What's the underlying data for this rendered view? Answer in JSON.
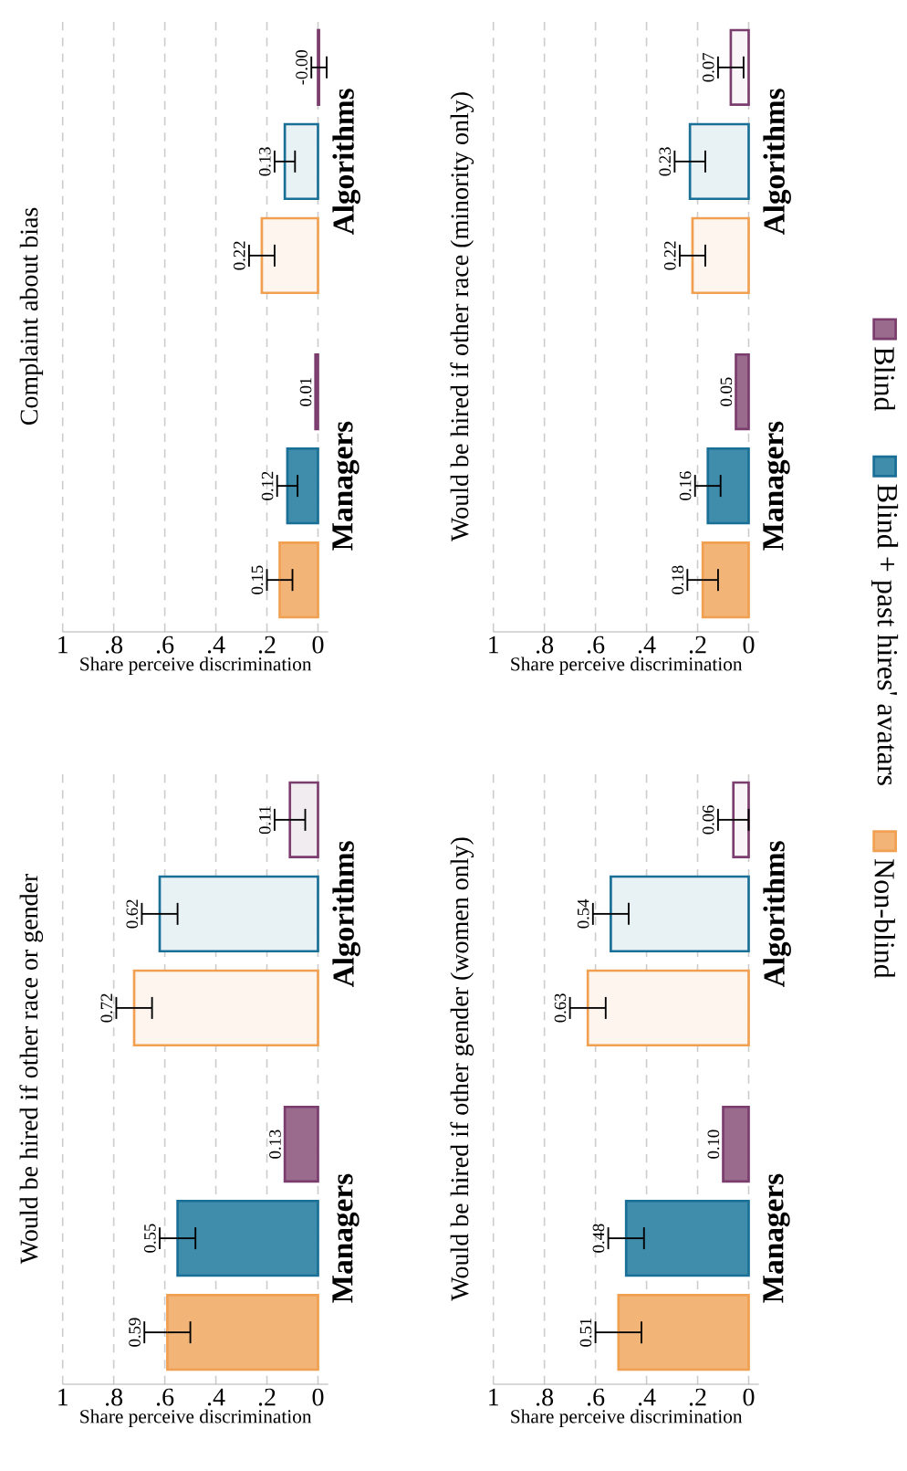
{
  "chart_data": [
    {
      "type": "bar",
      "orientation": "horizontal",
      "title": "Would be hired if other race or gender",
      "xlabel": "Share perceive discrimination",
      "categories": [
        "Algorithms",
        "Managers"
      ],
      "xlim": [
        1,
        -0.04
      ],
      "xticks": [
        {
          "value": 0,
          "label": "0"
        },
        {
          "value": 0.2,
          "label": ".2"
        },
        {
          "value": 0.4,
          "label": ".4"
        },
        {
          "value": 0.6,
          "label": ".6"
        },
        {
          "value": 0.8,
          "label": ".8"
        },
        {
          "value": 1,
          "label": "1"
        }
      ],
      "grid": "x",
      "series": [
        {
          "color": "#7a3d6e",
          "colors": [
            "#f1ecf0",
            "#9b6b8e"
          ],
          "values": [
            0.11,
            0.13
          ],
          "errors": [
            0.06,
            null
          ],
          "value_labels": [
            "0.11",
            "0.13"
          ]
        },
        {
          "color": "#1a6f96",
          "colors": [
            "#e8f1f4",
            "#3f8dab"
          ],
          "values": [
            0.62,
            0.55
          ],
          "errors": [
            0.07,
            0.07
          ],
          "value_labels": [
            "0.62",
            "0.55"
          ]
        },
        {
          "color": "#f0a050",
          "colors": [
            "#fdf5ee",
            "#f3b577"
          ],
          "values": [
            0.72,
            0.59
          ],
          "errors": [
            0.07,
            0.09
          ],
          "value_labels": [
            "0.72",
            "0.59"
          ]
        }
      ]
    },
    {
      "type": "bar",
      "orientation": "horizontal",
      "title": "Complaint about bias",
      "xlabel": "Share perceive discrimination",
      "categories": [
        "Algorithms",
        "Managers"
      ],
      "xlim": [
        1,
        -0.04
      ],
      "xticks": [
        {
          "value": 0,
          "label": "0"
        },
        {
          "value": 0.2,
          "label": ".2"
        },
        {
          "value": 0.4,
          "label": ".4"
        },
        {
          "value": 0.6,
          "label": ".6"
        },
        {
          "value": 0.8,
          "label": ".8"
        },
        {
          "value": 1,
          "label": "1"
        }
      ],
      "grid": "x",
      "series": [
        {
          "color": "#7a3d6e",
          "colors": [
            "#f1ecf0",
            "#9b6b8e"
          ],
          "values": [
            -0.004,
            0.01
          ],
          "errors": [
            0.03,
            null
          ],
          "value_labels": [
            "-0.00",
            "0.01"
          ]
        },
        {
          "color": "#1a6f96",
          "colors": [
            "#e8f1f4",
            "#3f8dab"
          ],
          "values": [
            0.13,
            0.12
          ],
          "errors": [
            0.04,
            0.04
          ],
          "value_labels": [
            "0.13",
            "0.12"
          ]
        },
        {
          "color": "#f0a050",
          "colors": [
            "#fdf5ee",
            "#f3b577"
          ],
          "values": [
            0.22,
            0.15
          ],
          "errors": [
            0.05,
            0.05
          ],
          "value_labels": [
            "0.22",
            "0.15"
          ]
        }
      ]
    },
    {
      "type": "bar",
      "orientation": "horizontal",
      "title": "Would be hired if other gender (women only)",
      "xlabel": "Share perceive discrimination",
      "categories": [
        "Algorithms",
        "Managers"
      ],
      "xlim": [
        1,
        -0.04
      ],
      "xticks": [
        {
          "value": 0,
          "label": "0"
        },
        {
          "value": 0.2,
          "label": ".2"
        },
        {
          "value": 0.4,
          "label": ".4"
        },
        {
          "value": 0.6,
          "label": ".6"
        },
        {
          "value": 0.8,
          "label": ".8"
        },
        {
          "value": 1,
          "label": "1"
        }
      ],
      "grid": "x",
      "series": [
        {
          "color": "#7a3d6e",
          "colors": [
            "#f8f4f7",
            "#9b6b8e"
          ],
          "values": [
            0.06,
            0.1
          ],
          "errors": [
            0.06,
            null
          ],
          "value_labels": [
            "0.06",
            "0.10"
          ]
        },
        {
          "color": "#1a6f96",
          "colors": [
            "#e8f1f4",
            "#3f8dab"
          ],
          "values": [
            0.54,
            0.48
          ],
          "errors": [
            0.07,
            0.07
          ],
          "value_labels": [
            "0.54",
            "0.48"
          ]
        },
        {
          "color": "#f0a050",
          "colors": [
            "#fdf5ee",
            "#f3b577"
          ],
          "values": [
            0.63,
            0.51
          ],
          "errors": [
            0.07,
            0.09
          ],
          "value_labels": [
            "0.63",
            "0.51"
          ]
        }
      ]
    },
    {
      "type": "bar",
      "orientation": "horizontal",
      "title": "Would be hired if other race (minority only)",
      "xlabel": "Share perceive discrimination",
      "categories": [
        "Algorithms",
        "Managers"
      ],
      "xlim": [
        1,
        -0.04
      ],
      "xticks": [
        {
          "value": 0,
          "label": "0"
        },
        {
          "value": 0.2,
          "label": ".2"
        },
        {
          "value": 0.4,
          "label": ".4"
        },
        {
          "value": 0.6,
          "label": ".6"
        },
        {
          "value": 0.8,
          "label": ".8"
        },
        {
          "value": 1,
          "label": "1"
        }
      ],
      "grid": "x",
      "legend": "right",
      "series": [
        {
          "name": "Blind",
          "color": "#7a3d6e",
          "colors": [
            "#f8f4f7",
            "#9b6b8e"
          ],
          "values": [
            0.07,
            0.05
          ],
          "errors": [
            0.05,
            null
          ],
          "value_labels": [
            "0.07",
            "0.05"
          ]
        },
        {
          "name": "Blind + past hires' avatars",
          "color": "#1a6f96",
          "colors": [
            "#e8f1f4",
            "#3f8dab"
          ],
          "values": [
            0.23,
            0.16
          ],
          "errors": [
            0.06,
            0.05
          ],
          "value_labels": [
            "0.23",
            "0.16"
          ]
        },
        {
          "name": "Non-blind",
          "color": "#f0a050",
          "colors": [
            "#fdf5ee",
            "#f3b577"
          ],
          "values": [
            0.22,
            0.18
          ],
          "errors": [
            0.05,
            0.06
          ],
          "value_labels": [
            "0.22",
            "0.18"
          ]
        }
      ]
    }
  ]
}
